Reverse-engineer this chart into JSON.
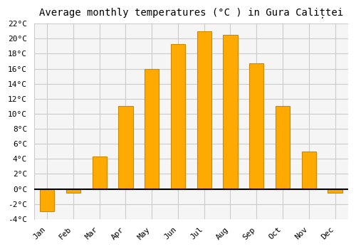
{
  "title": "Average monthly temperatures (°C ) in Gura Calițtei",
  "months": [
    "Jan",
    "Feb",
    "Mar",
    "Apr",
    "May",
    "Jun",
    "Jul",
    "Aug",
    "Sep",
    "Oct",
    "Nov",
    "Dec"
  ],
  "values": [
    -3.0,
    -0.5,
    4.3,
    11.0,
    16.0,
    19.3,
    21.0,
    20.5,
    16.7,
    11.0,
    5.0,
    -0.5
  ],
  "bar_color": "#FFAA00",
  "bar_edge_color": "#CC8800",
  "ylim": [
    -4,
    22
  ],
  "yticks": [
    -4,
    -2,
    0,
    2,
    4,
    6,
    8,
    10,
    12,
    14,
    16,
    18,
    20,
    22
  ],
  "ytick_labels": [
    "-4°C",
    "-2°C",
    "0°C",
    "2°C",
    "4°C",
    "6°C",
    "8°C",
    "10°C",
    "12°C",
    "14°C",
    "16°C",
    "18°C",
    "20°C",
    "22°C"
  ],
  "background_color": "#ffffff",
  "plot_bg_color": "#f5f5f5",
  "grid_color": "#cccccc",
  "title_fontsize": 10,
  "tick_fontsize": 8,
  "bar_width": 0.55
}
